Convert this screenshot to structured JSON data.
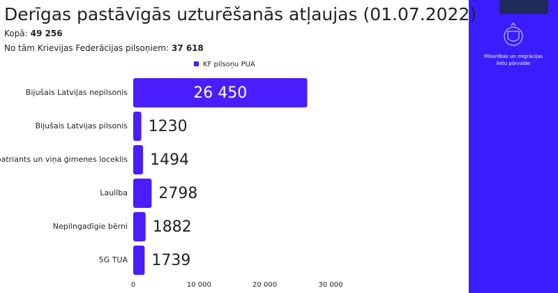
{
  "chart_data": {
    "type": "hbar",
    "title": "Derīgas pastāvīgās uzturēšanās atļaujas (01.07.2022)",
    "summary": [
      {
        "label": "Kopā:",
        "value": "49 256"
      },
      {
        "label": "No tām Krievijas Federācijas pilsoņiem:",
        "value": "37 618"
      }
    ],
    "categories": [
      "Bijušais Latvijas nepilsonis",
      "Bijušais Latvijas pilsonis",
      "Repatriants un viņa ģimenes loceklis",
      "Laulība",
      "Nepilngadīgie bērni",
      "5G TUA"
    ],
    "series": [
      {
        "name": "KF pilsoņu PUA",
        "color": "#4a1dfd",
        "values": [
          26450,
          1230,
          1494,
          2798,
          1882,
          1739
        ],
        "value_labels": [
          "26 450",
          "1230",
          "1494",
          "2798",
          "1882",
          "1739"
        ]
      }
    ],
    "xlim": [
      0,
      30000
    ],
    "xticks": [
      0,
      {
        "value": 10000,
        "label": "10 000"
      },
      {
        "value": 20000,
        "label": "20 000"
      },
      {
        "value": 30000,
        "label": "30 000"
      }
    ]
  },
  "side_panel": {
    "org_lines": [
      "Pilsonības un migrācijas",
      "lietu pārvalde"
    ]
  }
}
